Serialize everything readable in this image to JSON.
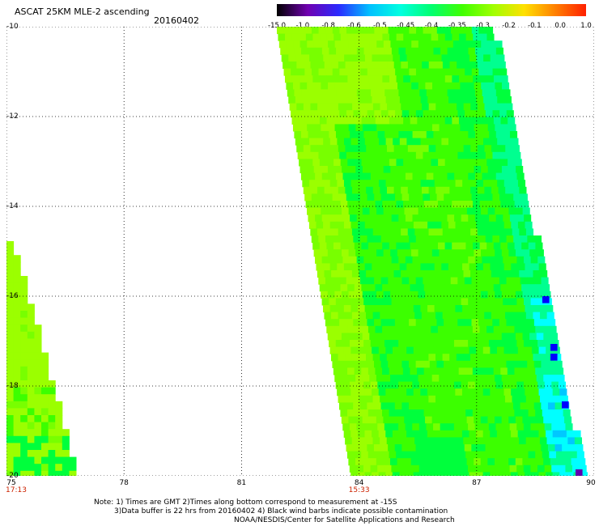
{
  "header": {
    "title": "ASCAT 25KM MLE-2 ascending",
    "date": "20160402"
  },
  "colorbar": {
    "labels": [
      "-15.0",
      "-1.0",
      "-0.8",
      "-0.6",
      "-0.5",
      "-0.45",
      "-0.4",
      "-0.35",
      "-0.3",
      "-0.2",
      "-0.1",
      "0.0",
      "1.0"
    ],
    "colors": [
      "#000000",
      "#7000b0",
      "#2a2aff",
      "#00c0ff",
      "#00ffe0",
      "#00ff70",
      "#40ff00",
      "#a0ff00",
      "#ffe000",
      "#ff8000",
      "#ff2000"
    ]
  },
  "map": {
    "lat_labels": [
      "-10",
      "-12",
      "-14",
      "-16",
      "-18",
      "-20"
    ],
    "lon_labels": [
      "75",
      "78",
      "81",
      "84",
      "87",
      "90"
    ],
    "lat_range": [
      -20,
      -10
    ],
    "lon_range": [
      75,
      90
    ],
    "swath_times": [
      {
        "label": "17:13",
        "lon": 75.0
      },
      {
        "label": "15:33",
        "lon": 84.0
      }
    ],
    "palette": {
      "lime": "#9bff00",
      "yellowgreen": "#78ff00",
      "green": "#3cff00",
      "brightgreen": "#00ff3c",
      "spring": "#00ff90",
      "cyan": "#00ffff",
      "sky": "#00c8ff",
      "blue": "#0000ff",
      "violet": "#6000b0"
    }
  },
  "notes": {
    "line1": "Note: 1) Times are GMT 2)Times along bottom correspond to measurement at -15S",
    "line2": "3)Data buffer is 22 hrs from 20160402 4) Black wind barbs indicate possible contamination",
    "line3": "NOAA/NESDIS/Center for Satellite Applications and Research"
  }
}
